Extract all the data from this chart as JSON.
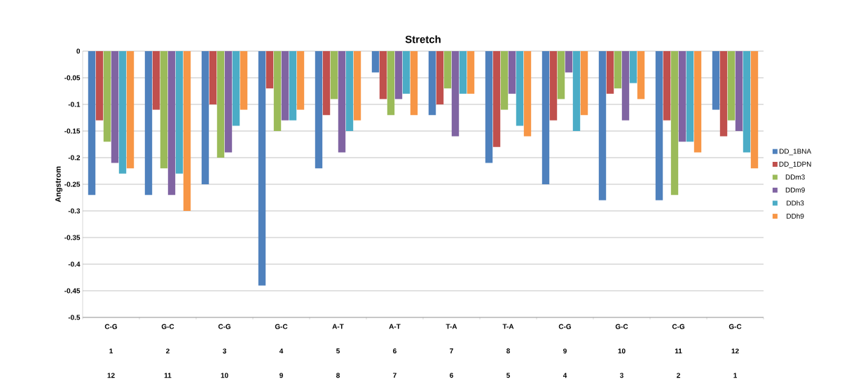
{
  "chart_data": {
    "type": "bar",
    "title": "Stretch",
    "ylabel": "Angstrom",
    "categories": [
      "C-G\n1\n12",
      "G-C\n2\n11",
      "C-G\n3\n10",
      "G-C\n4\n9",
      "A-T\n5\n8",
      "A-T\n6\n7",
      "T-A\n7\n6",
      "T-A\n8\n5",
      "C-G\n9\n4",
      "G-C\n10\n3",
      "C-G\n11\n2",
      "G-C\n12\n1"
    ],
    "series": [
      {
        "name": "DD_1BNA",
        "color": "#4f81bd",
        "values": [
          -0.27,
          -0.27,
          -0.25,
          -0.44,
          -0.22,
          -0.04,
          -0.12,
          -0.21,
          -0.25,
          -0.28,
          -0.28,
          -0.11
        ]
      },
      {
        "name": "DD_1DPN",
        "color": "#c0504d",
        "values": [
          -0.13,
          -0.11,
          -0.1,
          -0.07,
          -0.12,
          -0.09,
          -0.1,
          -0.18,
          -0.13,
          -0.08,
          -0.13,
          -0.16
        ]
      },
      {
        "name": "DDm3",
        "color": "#9bbb59",
        "values": [
          -0.17,
          -0.22,
          -0.2,
          -0.15,
          -0.09,
          -0.12,
          -0.07,
          -0.11,
          -0.09,
          -0.07,
          -0.27,
          -0.13
        ]
      },
      {
        "name": "DDm9",
        "color": "#8064a2",
        "values": [
          -0.21,
          -0.27,
          -0.19,
          -0.13,
          -0.19,
          -0.09,
          -0.16,
          -0.08,
          -0.04,
          -0.13,
          -0.17,
          -0.15
        ]
      },
      {
        "name": "DDh3",
        "color": "#4bacc6",
        "values": [
          -0.23,
          -0.23,
          -0.14,
          -0.13,
          -0.15,
          -0.08,
          -0.08,
          -0.14,
          -0.15,
          -0.06,
          -0.17,
          -0.19
        ]
      },
      {
        "name": "DDh9",
        "color": "#f79646",
        "values": [
          -0.22,
          -0.3,
          -0.11,
          -0.11,
          -0.13,
          -0.12,
          -0.08,
          -0.16,
          -0.12,
          -0.09,
          -0.19,
          -0.22
        ]
      }
    ],
    "ylim": [
      -0.5,
      0
    ],
    "yticks": [
      0,
      -0.05,
      -0.1,
      -0.15,
      -0.2,
      -0.25,
      -0.3,
      -0.35,
      -0.4,
      -0.45,
      -0.5
    ],
    "grid": "y",
    "legend": "right"
  }
}
